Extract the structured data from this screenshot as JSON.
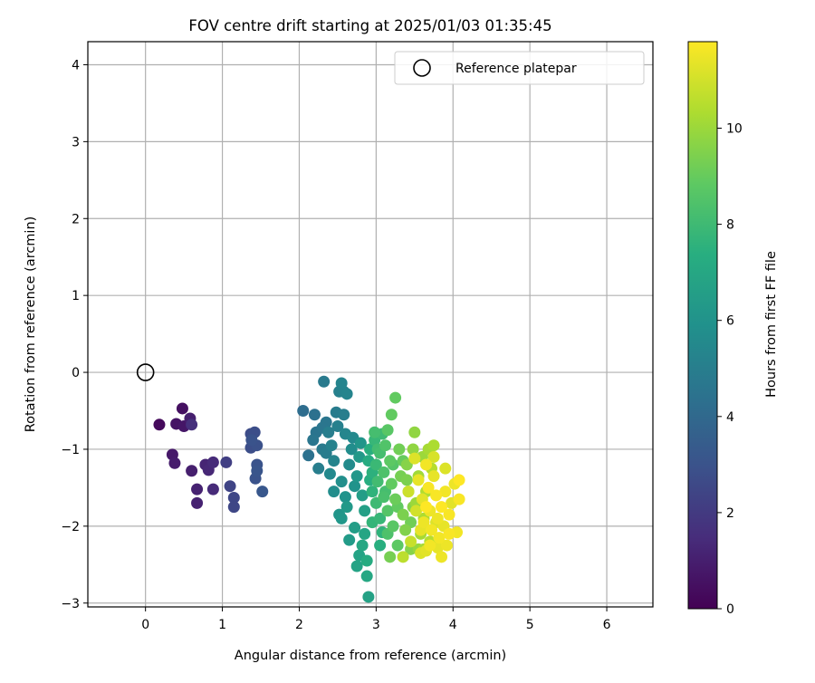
{
  "chart_data": {
    "type": "scatter",
    "title": "FOV centre drift starting at 2025/01/03 01:35:45",
    "xlabel": "Angular distance from reference (arcmin)",
    "ylabel": "Rotation from reference (arcmin)",
    "xlim": [
      -0.75,
      6.6
    ],
    "ylim": [
      -3.05,
      4.3
    ],
    "xticks": [
      0,
      1,
      2,
      3,
      4,
      5,
      6
    ],
    "yticks": [
      -3,
      -2,
      -1,
      0,
      1,
      2,
      3,
      4
    ],
    "grid": true,
    "legend": {
      "placement": "top-right",
      "entries": [
        {
          "label": "Reference platepar",
          "marker": "open-circle"
        }
      ]
    },
    "reference_point": {
      "x": 0,
      "y": 0
    },
    "colorbar": {
      "label": "Hours from first FF file",
      "colormap": "viridis",
      "range": [
        0,
        11.8
      ],
      "ticks": [
        0,
        2,
        4,
        6,
        8,
        10
      ]
    },
    "points": [
      {
        "x": 0.18,
        "y": -0.68,
        "t": 0.3
      },
      {
        "x": 0.48,
        "y": -0.47,
        "t": 0.5
      },
      {
        "x": 0.4,
        "y": -0.67,
        "t": 0.6
      },
      {
        "x": 0.5,
        "y": -0.7,
        "t": 0.7
      },
      {
        "x": 0.35,
        "y": -1.07,
        "t": 0.8
      },
      {
        "x": 0.38,
        "y": -1.18,
        "t": 0.9
      },
      {
        "x": 0.58,
        "y": -0.6,
        "t": 1.0
      },
      {
        "x": 0.6,
        "y": -1.28,
        "t": 1.0
      },
      {
        "x": 0.67,
        "y": -1.52,
        "t": 1.1
      },
      {
        "x": 0.67,
        "y": -1.7,
        "t": 1.1
      },
      {
        "x": 0.78,
        "y": -1.2,
        "t": 1.2
      },
      {
        "x": 0.82,
        "y": -1.27,
        "t": 1.3
      },
      {
        "x": 0.88,
        "y": -1.17,
        "t": 1.4
      },
      {
        "x": 0.88,
        "y": -1.52,
        "t": 1.4
      },
      {
        "x": 0.6,
        "y": -0.68,
        "t": 1.6
      },
      {
        "x": 1.05,
        "y": -1.17,
        "t": 2.2
      },
      {
        "x": 1.1,
        "y": -1.48,
        "t": 2.4
      },
      {
        "x": 1.15,
        "y": -1.63,
        "t": 2.5
      },
      {
        "x": 1.15,
        "y": -1.75,
        "t": 2.5
      },
      {
        "x": 1.37,
        "y": -0.8,
        "t": 2.7
      },
      {
        "x": 1.42,
        "y": -0.78,
        "t": 2.8
      },
      {
        "x": 1.37,
        "y": -0.98,
        "t": 2.8
      },
      {
        "x": 1.45,
        "y": -0.95,
        "t": 2.9
      },
      {
        "x": 1.45,
        "y": -1.2,
        "t": 3.0
      },
      {
        "x": 1.43,
        "y": -1.38,
        "t": 3.0
      },
      {
        "x": 1.45,
        "y": -1.28,
        "t": 3.1
      },
      {
        "x": 1.52,
        "y": -1.55,
        "t": 3.2
      },
      {
        "x": 1.38,
        "y": -0.88,
        "t": 3.0
      },
      {
        "x": 2.05,
        "y": -0.5,
        "t": 4.2
      },
      {
        "x": 2.12,
        "y": -1.08,
        "t": 4.4
      },
      {
        "x": 2.18,
        "y": -0.88,
        "t": 4.6
      },
      {
        "x": 2.22,
        "y": -0.78,
        "t": 4.5
      },
      {
        "x": 2.25,
        "y": -1.25,
        "t": 5.0
      },
      {
        "x": 2.3,
        "y": -1.0,
        "t": 4.8
      },
      {
        "x": 2.32,
        "y": -0.12,
        "t": 4.8
      },
      {
        "x": 2.35,
        "y": -0.65,
        "t": 4.6
      },
      {
        "x": 2.38,
        "y": -0.78,
        "t": 5.0
      },
      {
        "x": 2.42,
        "y": -0.95,
        "t": 5.2
      },
      {
        "x": 2.45,
        "y": -1.15,
        "t": 5.3
      },
      {
        "x": 2.48,
        "y": -0.52,
        "t": 4.9
      },
      {
        "x": 2.5,
        "y": -0.7,
        "t": 5.1
      },
      {
        "x": 2.52,
        "y": -0.25,
        "t": 5.1
      },
      {
        "x": 2.55,
        "y": -0.14,
        "t": 5.3
      },
      {
        "x": 2.58,
        "y": -0.25,
        "t": 5.2
      },
      {
        "x": 2.62,
        "y": -0.28,
        "t": 5.3
      },
      {
        "x": 2.4,
        "y": -1.32,
        "t": 5.5
      },
      {
        "x": 2.45,
        "y": -1.55,
        "t": 5.7
      },
      {
        "x": 2.55,
        "y": -1.42,
        "t": 5.8
      },
      {
        "x": 2.6,
        "y": -1.62,
        "t": 6.0
      },
      {
        "x": 2.52,
        "y": -1.85,
        "t": 6.1
      },
      {
        "x": 2.55,
        "y": -1.9,
        "t": 6.2
      },
      {
        "x": 2.62,
        "y": -1.75,
        "t": 6.3
      },
      {
        "x": 2.65,
        "y": -1.2,
        "t": 5.6
      },
      {
        "x": 2.68,
        "y": -1.0,
        "t": 5.7
      },
      {
        "x": 2.7,
        "y": -0.85,
        "t": 5.5
      },
      {
        "x": 2.72,
        "y": -1.48,
        "t": 6.0
      },
      {
        "x": 2.75,
        "y": -1.35,
        "t": 6.2
      },
      {
        "x": 2.78,
        "y": -1.1,
        "t": 6.3
      },
      {
        "x": 2.8,
        "y": -0.92,
        "t": 6.1
      },
      {
        "x": 2.82,
        "y": -1.6,
        "t": 6.5
      },
      {
        "x": 2.85,
        "y": -1.8,
        "t": 6.6
      },
      {
        "x": 2.65,
        "y": -2.18,
        "t": 6.4
      },
      {
        "x": 2.72,
        "y": -2.02,
        "t": 6.5
      },
      {
        "x": 2.75,
        "y": -2.52,
        "t": 6.8
      },
      {
        "x": 2.78,
        "y": -2.38,
        "t": 6.8
      },
      {
        "x": 2.82,
        "y": -2.25,
        "t": 7.0
      },
      {
        "x": 2.85,
        "y": -2.1,
        "t": 6.9
      },
      {
        "x": 2.88,
        "y": -2.45,
        "t": 7.2
      },
      {
        "x": 2.88,
        "y": -2.65,
        "t": 7.0
      },
      {
        "x": 2.9,
        "y": -2.92,
        "t": 6.7
      },
      {
        "x": 2.6,
        "y": -0.8,
        "t": 5.4
      },
      {
        "x": 2.2,
        "y": -0.55,
        "t": 4.4
      },
      {
        "x": 2.35,
        "y": -1.05,
        "t": 4.9
      },
      {
        "x": 2.58,
        "y": -0.55,
        "t": 5.0
      },
      {
        "x": 2.3,
        "y": -0.72,
        "t": 4.6
      },
      {
        "x": 2.9,
        "y": -1.15,
        "t": 7.2
      },
      {
        "x": 2.92,
        "y": -1.0,
        "t": 7.4
      },
      {
        "x": 2.95,
        "y": -1.3,
        "t": 7.5
      },
      {
        "x": 2.95,
        "y": -1.55,
        "t": 7.6
      },
      {
        "x": 2.98,
        "y": -0.88,
        "t": 7.8
      },
      {
        "x": 3.0,
        "y": -1.2,
        "t": 7.9
      },
      {
        "x": 3.0,
        "y": -1.7,
        "t": 8.0
      },
      {
        "x": 3.02,
        "y": -1.42,
        "t": 8.1
      },
      {
        "x": 3.05,
        "y": -1.05,
        "t": 8.2
      },
      {
        "x": 3.05,
        "y": -1.9,
        "t": 7.8
      },
      {
        "x": 3.08,
        "y": -2.08,
        "t": 7.6
      },
      {
        "x": 3.1,
        "y": -1.62,
        "t": 8.3
      },
      {
        "x": 3.1,
        "y": -1.3,
        "t": 8.4
      },
      {
        "x": 3.12,
        "y": -0.95,
        "t": 8.5
      },
      {
        "x": 3.15,
        "y": -1.8,
        "t": 8.6
      },
      {
        "x": 3.15,
        "y": -0.75,
        "t": 8.7
      },
      {
        "x": 3.18,
        "y": -1.15,
        "t": 8.8
      },
      {
        "x": 3.2,
        "y": -0.55,
        "t": 8.9
      },
      {
        "x": 3.2,
        "y": -1.45,
        "t": 8.9
      },
      {
        "x": 3.22,
        "y": -2.0,
        "t": 8.7
      },
      {
        "x": 3.25,
        "y": -0.33,
        "t": 8.9
      },
      {
        "x": 3.25,
        "y": -1.65,
        "t": 9.1
      },
      {
        "x": 3.28,
        "y": -2.25,
        "t": 8.8
      },
      {
        "x": 3.3,
        "y": -1.0,
        "t": 9.2
      },
      {
        "x": 3.32,
        "y": -1.35,
        "t": 9.3
      },
      {
        "x": 3.35,
        "y": -1.85,
        "t": 9.4
      },
      {
        "x": 3.38,
        "y": -2.05,
        "t": 9.5
      },
      {
        "x": 3.4,
        "y": -1.2,
        "t": 9.6
      },
      {
        "x": 3.42,
        "y": -1.55,
        "t": 9.7
      },
      {
        "x": 3.45,
        "y": -2.3,
        "t": 9.6
      },
      {
        "x": 3.48,
        "y": -1.0,
        "t": 9.8
      },
      {
        "x": 3.5,
        "y": -0.78,
        "t": 9.8
      },
      {
        "x": 3.52,
        "y": -1.7,
        "t": 10.0
      },
      {
        "x": 3.55,
        "y": -1.35,
        "t": 10.1
      },
      {
        "x": 3.58,
        "y": -2.1,
        "t": 10.2
      },
      {
        "x": 3.6,
        "y": -1.1,
        "t": 10.0
      },
      {
        "x": 3.62,
        "y": -1.9,
        "t": 10.3
      },
      {
        "x": 3.65,
        "y": -1.55,
        "t": 10.4
      },
      {
        "x": 3.68,
        "y": -1.0,
        "t": 10.2
      },
      {
        "x": 3.7,
        "y": -2.2,
        "t": 10.5
      },
      {
        "x": 3.72,
        "y": -1.25,
        "t": 10.5
      },
      {
        "x": 3.75,
        "y": -0.95,
        "t": 10.3
      },
      {
        "x": 3.18,
        "y": -2.4,
        "t": 9.3
      },
      {
        "x": 2.98,
        "y": -0.78,
        "t": 8.2
      },
      {
        "x": 3.05,
        "y": -2.25,
        "t": 7.4
      },
      {
        "x": 2.95,
        "y": -1.95,
        "t": 7.7
      },
      {
        "x": 3.08,
        "y": -0.8,
        "t": 8.0
      },
      {
        "x": 3.22,
        "y": -1.2,
        "t": 8.6
      },
      {
        "x": 3.35,
        "y": -1.15,
        "t": 9.0
      },
      {
        "x": 3.28,
        "y": -1.75,
        "t": 8.9
      },
      {
        "x": 3.45,
        "y": -1.95,
        "t": 9.2
      },
      {
        "x": 3.4,
        "y": -1.4,
        "t": 9.4
      },
      {
        "x": 3.12,
        "y": -1.55,
        "t": 8.2
      },
      {
        "x": 3.02,
        "y": -1.0,
        "t": 8.1
      },
      {
        "x": 2.92,
        "y": -1.4,
        "t": 7.3
      },
      {
        "x": 3.15,
        "y": -2.1,
        "t": 8.4
      },
      {
        "x": 3.55,
        "y": -2.3,
        "t": 9.9
      },
      {
        "x": 3.48,
        "y": -1.75,
        "t": 9.6
      },
      {
        "x": 3.62,
        "y": -2.3,
        "t": 10.2
      },
      {
        "x": 3.5,
        "y": -1.12,
        "t": 11.2
      },
      {
        "x": 3.55,
        "y": -1.4,
        "t": 11.4
      },
      {
        "x": 3.6,
        "y": -1.65,
        "t": 11.3
      },
      {
        "x": 3.62,
        "y": -1.95,
        "t": 11.5
      },
      {
        "x": 3.65,
        "y": -1.2,
        "t": 11.6
      },
      {
        "x": 3.68,
        "y": -1.5,
        "t": 11.7
      },
      {
        "x": 3.7,
        "y": -1.8,
        "t": 11.5
      },
      {
        "x": 3.72,
        "y": -2.05,
        "t": 11.6
      },
      {
        "x": 3.75,
        "y": -1.35,
        "t": 11.4
      },
      {
        "x": 3.78,
        "y": -1.6,
        "t": 11.7
      },
      {
        "x": 3.8,
        "y": -1.9,
        "t": 11.5
      },
      {
        "x": 3.82,
        "y": -2.15,
        "t": 11.6
      },
      {
        "x": 3.85,
        "y": -1.75,
        "t": 11.8
      },
      {
        "x": 3.88,
        "y": -2.0,
        "t": 11.4
      },
      {
        "x": 3.9,
        "y": -1.55,
        "t": 11.6
      },
      {
        "x": 3.92,
        "y": -2.25,
        "t": 11.5
      },
      {
        "x": 3.95,
        "y": -1.85,
        "t": 11.7
      },
      {
        "x": 3.98,
        "y": -1.7,
        "t": 11.3
      },
      {
        "x": 4.02,
        "y": -1.45,
        "t": 11.5
      },
      {
        "x": 4.05,
        "y": -2.08,
        "t": 11.6
      },
      {
        "x": 4.08,
        "y": -1.4,
        "t": 11.8
      },
      {
        "x": 4.08,
        "y": -1.65,
        "t": 11.7
      },
      {
        "x": 3.58,
        "y": -2.35,
        "t": 11.2
      },
      {
        "x": 3.65,
        "y": -2.32,
        "t": 11.3
      },
      {
        "x": 3.8,
        "y": -2.28,
        "t": 11.4
      },
      {
        "x": 3.52,
        "y": -1.8,
        "t": 11.0
      },
      {
        "x": 3.42,
        "y": -1.55,
        "t": 10.9
      },
      {
        "x": 3.75,
        "y": -1.1,
        "t": 11.1
      },
      {
        "x": 3.9,
        "y": -1.25,
        "t": 11.2
      },
      {
        "x": 3.7,
        "y": -2.25,
        "t": 11.6
      },
      {
        "x": 3.85,
        "y": -2.4,
        "t": 11.5
      },
      {
        "x": 3.58,
        "y": -2.05,
        "t": 11.4
      },
      {
        "x": 3.95,
        "y": -2.1,
        "t": 11.7
      },
      {
        "x": 3.65,
        "y": -1.75,
        "t": 11.8
      },
      {
        "x": 3.78,
        "y": -1.95,
        "t": 11.2
      },
      {
        "x": 3.45,
        "y": -2.2,
        "t": 10.8
      },
      {
        "x": 3.35,
        "y": -2.4,
        "t": 10.6
      }
    ]
  }
}
